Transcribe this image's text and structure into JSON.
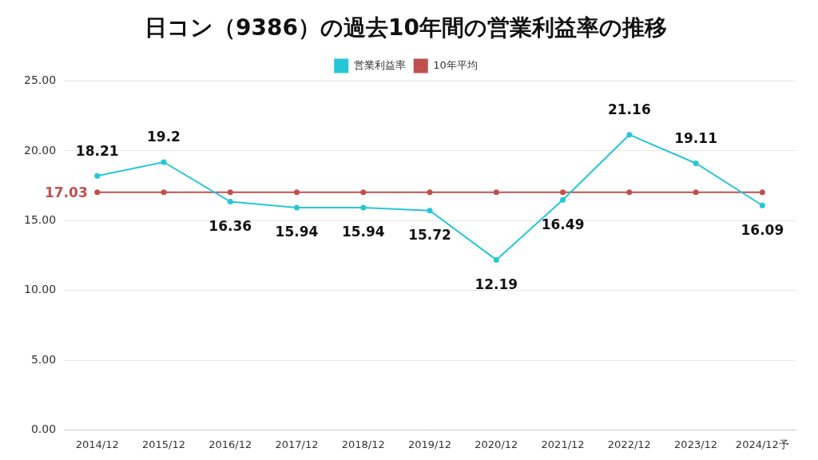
{
  "chart_data": {
    "type": "line",
    "title": "日コン（9386）の過去10年間の営業利益率の推移",
    "categories": [
      "2014/12",
      "2015/12",
      "2016/12",
      "2017/12",
      "2018/12",
      "2019/12",
      "2020/12",
      "2021/12",
      "2022/12",
      "2023/12",
      "2024/12予"
    ],
    "series": [
      {
        "name": "営業利益率",
        "color": "#26c6d8",
        "marker": "circle",
        "values": [
          18.21,
          19.2,
          16.36,
          15.94,
          15.94,
          15.72,
          12.19,
          16.49,
          21.16,
          19.11,
          16.09
        ]
      },
      {
        "name": "10年平均",
        "color": "#c0504d",
        "marker": "circle",
        "values": [
          17.03,
          17.03,
          17.03,
          17.03,
          17.03,
          17.03,
          17.03,
          17.03,
          17.03,
          17.03,
          17.03
        ],
        "value_labels": [
          "17.03",
          null,
          null,
          null,
          null,
          null,
          null,
          null,
          null,
          null,
          null
        ]
      }
    ],
    "ylim": [
      0,
      25
    ],
    "yticks": [
      {
        "value": 0,
        "label": "0.00"
      },
      {
        "value": 5,
        "label": "5.00"
      },
      {
        "value": 10,
        "label": "10.00"
      },
      {
        "value": 15,
        "label": "15.00"
      },
      {
        "value": 20,
        "label": "20.00"
      },
      {
        "value": 25,
        "label": "25.00"
      }
    ],
    "grid": true,
    "legend": "top",
    "data_labels": true
  }
}
